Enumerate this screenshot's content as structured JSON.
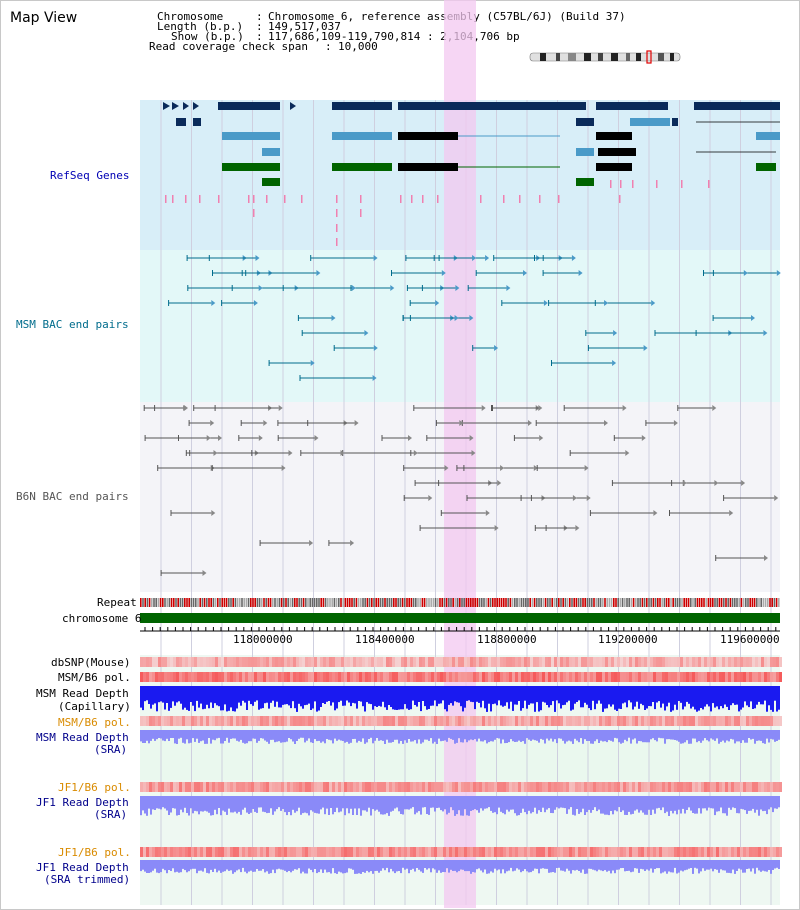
{
  "title": "Map View",
  "header": {
    "chromosome_label": "Chromosome",
    "chromosome_value": "Chromosome 6, reference assembly (C57BL/6J) (Build 37)",
    "length_label": "Length (b.p.)",
    "length_value": "149,517,037",
    "show_label": "Show (b.p.)",
    "show_value": "117,686,109-119,790,814 : 2,104,706 bp",
    "coverage_label": "Read coverage check span",
    "coverage_value": "10,000"
  },
  "tracks": {
    "refseq": "RefSeq Genes",
    "msm_bac": "MSM BAC end pairs",
    "b6n_bac": "B6N BAC end pairs",
    "repeat": "Repeat",
    "chromosome": "chromosome 6",
    "dbsnp": "dbSNP(Mouse)",
    "msm_b6_pol_1": "MSM/B6 pol.",
    "msm_read_depth_cap_1": "MSM Read Depth",
    "msm_read_depth_cap_2": "(Capillary)",
    "msm_b6_pol_2": "MSM/B6 pol.",
    "msm_read_depth_sra_1": "MSM Read Depth",
    "msm_read_depth_sra_2": "(SRA)",
    "jf1_b6_pol_1": "JF1/B6 pol.",
    "jf1_read_depth_sra_1": "JF1 Read Depth",
    "jf1_read_depth_sra_2": "(SRA)",
    "jf1_b6_pol_2": "JF1/B6 pol.",
    "jf1_read_depth_trim_1": "JF1 Read Depth",
    "jf1_read_depth_trim_2": "(SRA trimmed)"
  },
  "axis": {
    "ticks": [
      "118000000",
      "118400000",
      "118800000",
      "119200000",
      "119600000"
    ]
  },
  "colors": {
    "highlight": "#f3c8f0",
    "refseq_bg": "#d8eef8",
    "msm_bg": "#e3f8f8",
    "b6n_bg": "#f4f4f8",
    "gene_dark": "#0a2a5a",
    "gene_mid": "#4a9ac8",
    "gene_green": "#006400",
    "depth_blue": "#1a1af0",
    "depth_light": "#8a8af8"
  }
}
